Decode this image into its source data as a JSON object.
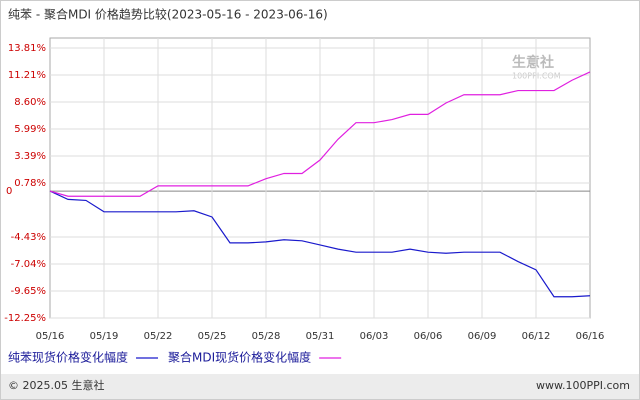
{
  "chart_data": {
    "type": "line",
    "title": "纯苯 - 聚合MDI 价格趋势比较(2023-05-16 - 2023-06-16)",
    "categories": [
      "05/16",
      null,
      null,
      "05/19",
      null,
      null,
      "05/22",
      null,
      null,
      "05/25",
      null,
      null,
      "05/28",
      null,
      null,
      "05/31",
      null,
      null,
      "06/03",
      null,
      null,
      "06/06",
      null,
      null,
      "06/09",
      null,
      null,
      "06/12",
      null,
      null,
      "06/16"
    ],
    "series": [
      {
        "name": "纯苯现货价格变化幅度",
        "color": "#1a1acc",
        "values": [
          0,
          -0.8,
          -0.9,
          -2.0,
          -2.0,
          -2.0,
          -2.0,
          -2.0,
          -1.9,
          -2.5,
          -5.0,
          -5.0,
          -4.9,
          -4.7,
          -4.8,
          -5.2,
          -5.6,
          -5.9,
          -5.9,
          -5.9,
          -5.6,
          -5.9,
          -6.0,
          -5.9,
          -5.9,
          -5.9,
          -6.8,
          -7.6,
          -10.2,
          -10.2,
          -10.1
        ]
      },
      {
        "name": "聚合MDI现货价格变化幅度",
        "color": "#e020e0",
        "values": [
          0,
          -0.5,
          -0.5,
          -0.5,
          -0.5,
          -0.5,
          0.5,
          0.5,
          0.5,
          0.5,
          0.5,
          0.5,
          1.2,
          1.7,
          1.7,
          3.0,
          5.0,
          6.6,
          6.6,
          6.9,
          7.4,
          7.4,
          8.5,
          9.3,
          9.3,
          9.3,
          9.7,
          9.7,
          9.7,
          10.7,
          11.5
        ]
      }
    ],
    "ylim": [
      -12.25,
      13.81
    ],
    "yticks": [
      {
        "value": 13.81,
        "label": "13.81%"
      },
      {
        "value": 11.21,
        "label": "11.21%"
      },
      {
        "value": 8.6,
        "label": "8.60%"
      },
      {
        "value": 5.99,
        "label": "5.99%"
      },
      {
        "value": 3.39,
        "label": "3.39%"
      },
      {
        "value": 0.78,
        "label": "0.78%"
      },
      0,
      {
        "value": -4.43,
        "label": "-4.43%"
      },
      {
        "value": -7.04,
        "label": "-7.04%"
      },
      {
        "value": -9.65,
        "label": "-9.65%"
      },
      {
        "value": -12.25,
        "label": "-12.25%"
      }
    ],
    "grid": true,
    "legend": "bottom"
  },
  "watermark": {
    "brand": "生意社",
    "site": "100PPI.COM"
  },
  "footer": {
    "copyright": "© 2025.05 生意社",
    "site": "www.100PPI.com"
  }
}
